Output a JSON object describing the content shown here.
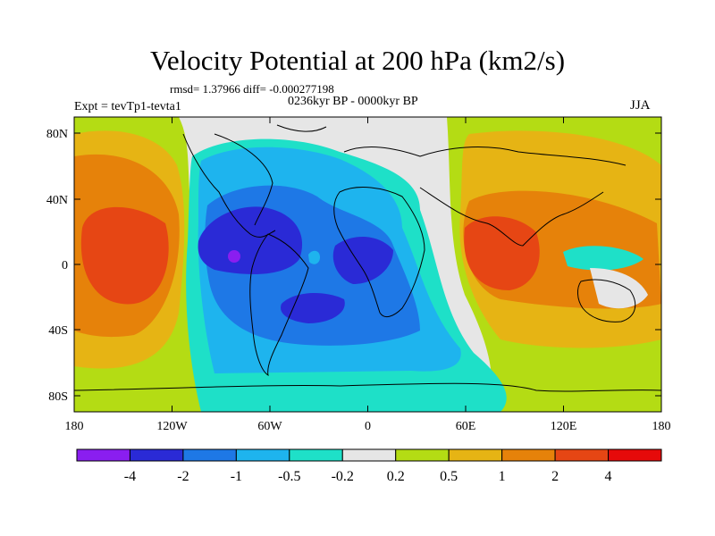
{
  "title": "Velocity Potential at 200 hPa (km2/s)",
  "stats": "rmsd= 1.37966 diff= -0.000277198",
  "period": "0236kyr BP - 0000kyr BP",
  "experiment": "Expt = tevTp1-tevta1",
  "season": "JJA",
  "lat_labels": [
    "80N",
    "40N",
    "0",
    "40S",
    "80S"
  ],
  "lon_labels": [
    "180",
    "120W",
    "60W",
    "0",
    "60E",
    "120E",
    "180"
  ],
  "colorbar": {
    "labels": [
      "-4",
      "-2",
      "-1",
      "-0.5",
      "-0.2",
      "0.2",
      "0.5",
      "1",
      "2",
      "4"
    ],
    "colors": [
      "#8a1ef0",
      "#2a2ad6",
      "#1e78e6",
      "#1eb4ee",
      "#1ee0c8",
      "#e6e6e6",
      "#b4dc14",
      "#e6b414",
      "#e6820a",
      "#e64614",
      "#e60a0a"
    ]
  }
}
